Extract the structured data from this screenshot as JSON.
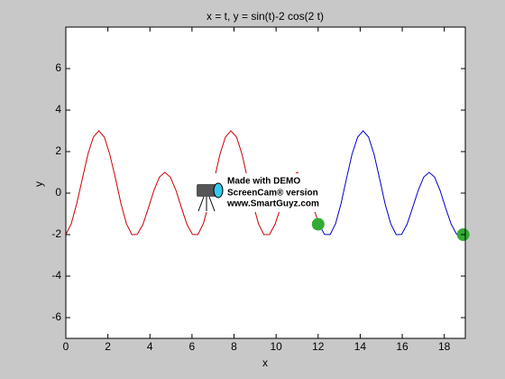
{
  "chart_data": {
    "type": "line",
    "title": "x = t, y = sin(t)-2 cos(2 t)",
    "xlabel": "x",
    "ylabel": "y",
    "xlim": [
      0,
      19
    ],
    "xticks": [
      0,
      2,
      4,
      6,
      8,
      10,
      12,
      14,
      16,
      18
    ],
    "ylim": [
      -7,
      8
    ],
    "yticks": [
      -6,
      -4,
      -2,
      0,
      2,
      4,
      6
    ],
    "grid": false,
    "series": [
      {
        "color": "#cc0000",
        "style": "line",
        "x": [
          0,
          0.26,
          0.52,
          0.79,
          1.05,
          1.31,
          1.57,
          1.83,
          2.09,
          2.36,
          2.62,
          2.88,
          3.14,
          3.4,
          3.67,
          3.93,
          4.19,
          4.45,
          4.71,
          4.97,
          5.24,
          5.5,
          5.76,
          6.02,
          6.28,
          6.54,
          6.81,
          7.07,
          7.33,
          7.59,
          7.85,
          8.12,
          8.38,
          8.64,
          8.9,
          9.16,
          9.42,
          9.69,
          9.95,
          10.21,
          10.47,
          10.73,
          11.0,
          11.26,
          11.52,
          11.78,
          12.04
        ],
        "values": [
          -2,
          -1.47,
          -0.5,
          0.71,
          1.87,
          2.7,
          3,
          2.7,
          1.87,
          0.71,
          -0.5,
          -1.47,
          -2,
          -1.99,
          -1.5,
          -0.71,
          0.13,
          0.77,
          1,
          0.77,
          0.13,
          -0.71,
          -1.5,
          -1.99,
          -2,
          -1.47,
          -0.5,
          0.71,
          1.87,
          2.7,
          3,
          2.7,
          1.87,
          0.71,
          -0.5,
          -1.47,
          -2,
          -1.99,
          -1.5,
          -0.71,
          0.13,
          0.77,
          1,
          0.77,
          0.13,
          -0.71,
          -1.5
        ]
      },
      {
        "color": "#0000cc",
        "style": "line",
        "x": [
          12.04,
          12.3,
          12.57,
          12.83,
          13.09,
          13.35,
          13.61,
          13.88,
          14.14,
          14.4,
          14.66,
          14.92,
          15.18,
          15.45,
          15.71,
          15.97,
          16.23,
          16.49,
          16.76,
          17.02,
          17.28,
          17.54,
          17.8,
          18.06,
          18.33,
          18.59,
          18.85
        ],
        "values": [
          -1.5,
          -1.99,
          -2,
          -1.47,
          -0.5,
          0.71,
          1.87,
          2.7,
          3,
          2.7,
          1.87,
          0.71,
          -0.5,
          -1.47,
          -2,
          -1.99,
          -1.5,
          -0.71,
          0.13,
          0.77,
          1,
          0.77,
          0.13,
          -0.71,
          -1.5,
          -1.99,
          -2
        ]
      },
      {
        "color": "#33aa33",
        "style": "marker",
        "x": [
          12,
          18.9
        ],
        "values": [
          -1.5,
          -2
        ]
      }
    ],
    "annotations": [
      "Made with DEMO",
      "ScreenCam® version",
      "www.SmartGuyz.com"
    ]
  }
}
